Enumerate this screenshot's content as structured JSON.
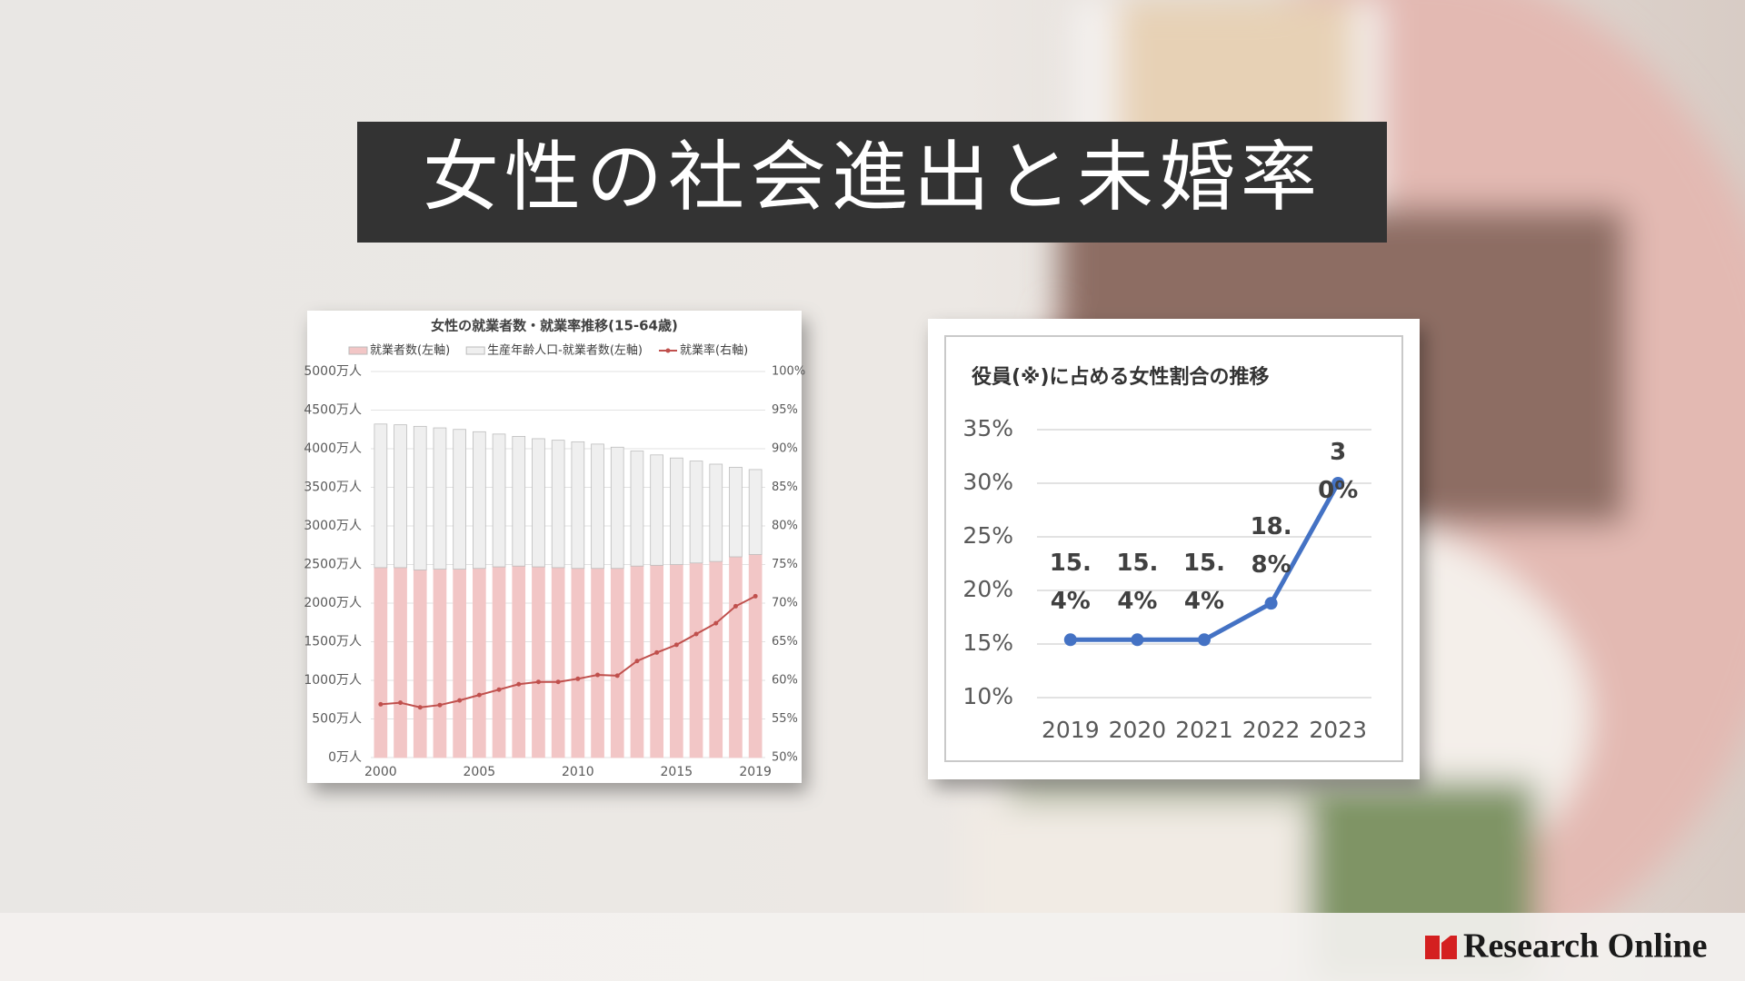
{
  "banner": {
    "title": "女性の社会進出と未婚率",
    "logo": "Research Online"
  },
  "chart_data": [
    {
      "type": "bar",
      "stacked": true,
      "title": "女性の就業者数・就業率推移(15-64歳)",
      "categories": [
        "2000",
        null,
        null,
        null,
        null,
        "2005",
        null,
        null,
        null,
        null,
        "2010",
        null,
        null,
        null,
        null,
        "2015",
        null,
        null,
        null,
        "2019"
      ],
      "series": [
        {
          "name": "就業者数(左軸)",
          "color": "#f2c6c6",
          "values": [
            2460,
            2460,
            2430,
            2440,
            2440,
            2450,
            2470,
            2480,
            2470,
            2460,
            2450,
            2450,
            2450,
            2480,
            2490,
            2500,
            2520,
            2540,
            2600,
            2630
          ]
        },
        {
          "name": "生産年齢人口-就業者数(左軸)",
          "color": "#efefef",
          "values": [
            1860,
            1850,
            1860,
            1830,
            1810,
            1770,
            1720,
            1680,
            1660,
            1650,
            1640,
            1610,
            1570,
            1490,
            1430,
            1380,
            1320,
            1260,
            1160,
            1100
          ]
        },
        {
          "name": "就業率(右軸)",
          "color": "#c0504d",
          "type": "line",
          "axis": "y2",
          "values": [
            56.9,
            57.1,
            56.5,
            56.8,
            57.4,
            58.1,
            58.8,
            59.5,
            59.8,
            59.8,
            60.2,
            60.7,
            60.6,
            62.5,
            63.6,
            64.6,
            66.0,
            67.4,
            69.6,
            70.9
          ]
        }
      ],
      "ylim": [
        0,
        5000
      ],
      "yticks": [
        {
          "value": 0,
          "label": "0万人"
        },
        {
          "value": 500,
          "label": "500万人"
        },
        {
          "value": 1000,
          "label": "1000万人"
        },
        {
          "value": 1500,
          "label": "1500万人"
        },
        {
          "value": 2000,
          "label": "2000万人"
        },
        {
          "value": 2500,
          "label": "2500万人"
        },
        {
          "value": 3000,
          "label": "3000万人"
        },
        {
          "value": 3500,
          "label": "3500万人"
        },
        {
          "value": 4000,
          "label": "4000万人"
        },
        {
          "value": 4500,
          "label": "4500万人"
        },
        {
          "value": 5000,
          "label": "5000万人"
        }
      ],
      "y2lim": [
        50,
        100
      ],
      "y2ticks": [
        {
          "value": 50,
          "label": "50%"
        },
        {
          "value": 55,
          "label": "55%"
        },
        {
          "value": 60,
          "label": "60%"
        },
        {
          "value": 65,
          "label": "65%"
        },
        {
          "value": 70,
          "label": "70%"
        },
        {
          "value": 75,
          "label": "75%"
        },
        {
          "value": 80,
          "label": "80%"
        },
        {
          "value": 85,
          "label": "85%"
        },
        {
          "value": 90,
          "label": "90%"
        },
        {
          "value": 95,
          "label": "95%"
        },
        {
          "value": 100,
          "label": "100%"
        }
      ],
      "grid": true,
      "legend": "top"
    },
    {
      "type": "line",
      "title": "役員(※)に占める女性割合の推移",
      "categories": [
        "2019",
        "2020",
        "2021",
        "2022",
        "2023"
      ],
      "values": [
        15.4,
        15.4,
        15.4,
        18.8,
        30
      ],
      "value_labels": [
        "15.4%",
        "15.4%",
        "15.4%",
        "18.8%",
        "30%"
      ],
      "color": "#4472c4",
      "ylim": [
        10,
        35
      ],
      "yticks": [
        {
          "value": 10,
          "label": "10%"
        },
        {
          "value": 15,
          "label": "15%"
        },
        {
          "value": 20,
          "label": "20%"
        },
        {
          "value": 25,
          "label": "25%"
        },
        {
          "value": 30,
          "label": "30%"
        },
        {
          "value": 35,
          "label": "35%"
        }
      ],
      "grid": true
    }
  ]
}
